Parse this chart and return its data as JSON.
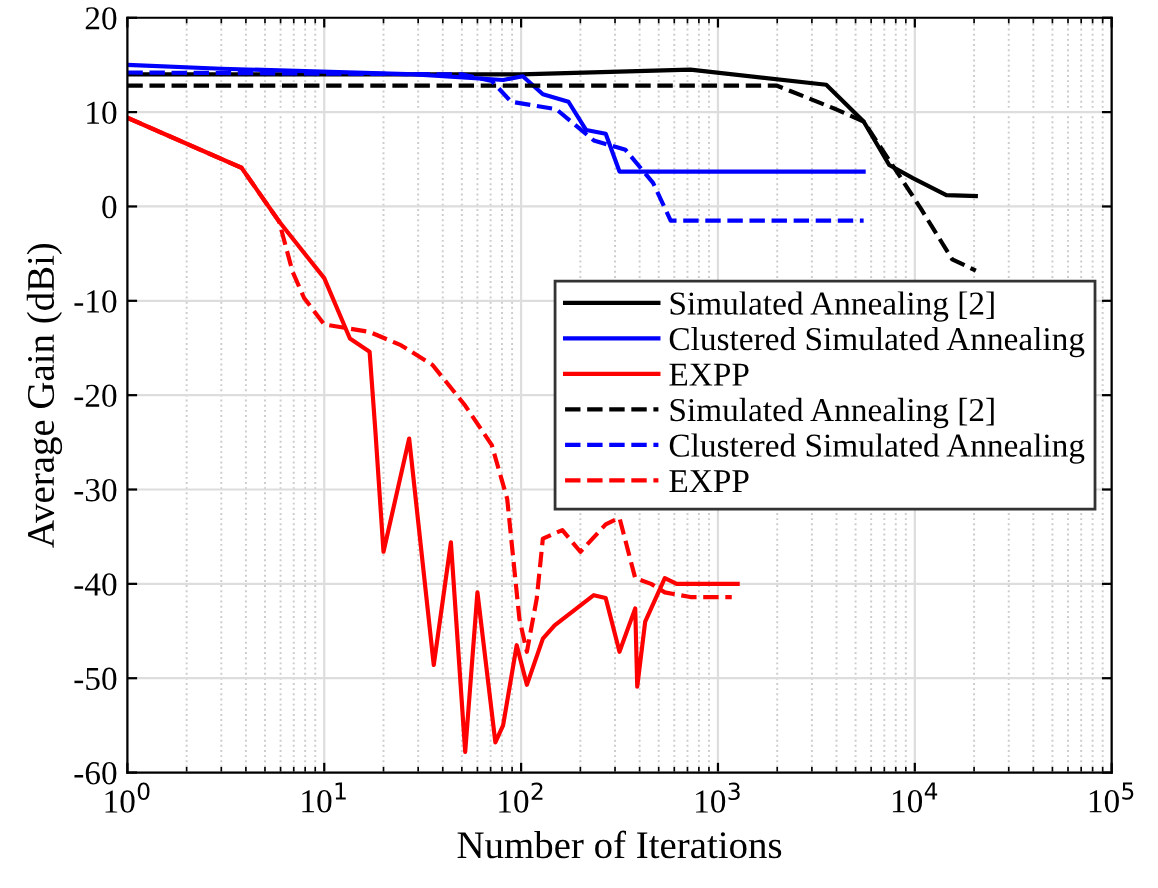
{
  "chart_data": {
    "type": "line",
    "xlabel": "Number of Iterations",
    "ylabel": "Average Gain (dBi)",
    "log": "x",
    "xlim": [
      1,
      100000
    ],
    "xticks": [
      {
        "value": 1,
        "label": "10$^{0}$"
      },
      {
        "value": 10,
        "label": "10$^{1}$"
      },
      {
        "value": 100,
        "label": "10$^{2}$"
      },
      {
        "value": 1000,
        "label": "10$^{3}$"
      },
      {
        "value": 10000,
        "label": "10$^{4}$"
      },
      {
        "value": 100000,
        "label": "10$^{5}$"
      }
    ],
    "ylim": [
      -60,
      20
    ],
    "yticks": [
      -60,
      -50,
      -40,
      -30,
      -20,
      -10,
      0,
      10,
      20
    ],
    "grid": true,
    "legend": "right",
    "series": [
      {
        "name": "Simulated Annealing [2]",
        "color": "#000000",
        "line_style": "solid",
        "x": [
          1,
          100,
          724,
          3548,
          5495,
          7413,
          9772,
          14454,
          20417
        ],
        "values": [
          14,
          14,
          14.5,
          12.9,
          9.0,
          4.4,
          3.0,
          1.2,
          1.1
        ]
      },
      {
        "name": "Clustered Simulated Annealing",
        "color": "#0000ff",
        "line_style": "solid",
        "x": [
          1,
          3,
          29,
          81,
          102,
          129,
          174,
          214,
          269,
          316,
          5495
        ],
        "values": [
          15,
          14.6,
          14,
          13.4,
          13.8,
          11.9,
          11.1,
          8.1,
          7.7,
          3.7,
          3.7
        ]
      },
      {
        "name": "EXPP",
        "color": "#ff0000",
        "line_style": "solid",
        "x": [
          1,
          3.8,
          5.9,
          10,
          13.5,
          17,
          18.2,
          20,
          27,
          36,
          44,
          52,
          60,
          74,
          81,
          95,
          107,
          129,
          148,
          234,
          269,
          316,
          380,
          389,
          427,
          537,
          617,
          1259
        ],
        "values": [
          9.4,
          4.1,
          -1.6,
          -7.6,
          -14,
          -15.4,
          -23.9,
          -36.6,
          -24.6,
          -48.6,
          -35.6,
          -57.8,
          -40.9,
          -56.8,
          -55,
          -46.5,
          -50.7,
          -45.8,
          -44.4,
          -41.2,
          -41.5,
          -47.2,
          -42.6,
          -50.9,
          -44,
          -39.4,
          -40,
          -40
        ]
      },
      {
        "name": "Simulated Annealing [2]",
        "color": "#000000",
        "line_style": "dashed",
        "x": [
          1,
          1995,
          3981,
          5495,
          8511,
          10715,
          15488,
          20417
        ],
        "values": [
          12.8,
          12.8,
          10.3,
          9.0,
          3.0,
          -0.2,
          -5.6,
          -6.8
        ]
      },
      {
        "name": "Clustered Simulated Annealing",
        "color": "#0000ff",
        "line_style": "dashed",
        "x": [
          1,
          50,
          71,
          89,
          151,
          234,
          339,
          468,
          575,
          5495
        ],
        "values": [
          14.2,
          14,
          13.3,
          11.1,
          10.3,
          7.0,
          6.0,
          2.5,
          -1.5,
          -1.5
        ]
      },
      {
        "name": "EXPP",
        "color": "#ff0000",
        "line_style": "dashed",
        "x": [
          1,
          3.8,
          5.9,
          6.9,
          7.9,
          10,
          17,
          24.5,
          35.5,
          52,
          71,
          85,
          98,
          107,
          120,
          129,
          162,
          200,
          269,
          316,
          380,
          457,
          537,
          724,
          1175
        ],
        "values": [
          9.4,
          4.1,
          -1.6,
          -6.9,
          -9.7,
          -12.5,
          -13.3,
          -14.7,
          -16.8,
          -21.1,
          -25.3,
          -31,
          -43.7,
          -47.2,
          -41.6,
          -35.2,
          -34.3,
          -36.6,
          -33.7,
          -33,
          -39.4,
          -40,
          -40.9,
          -41.4,
          -41.4
        ]
      }
    ]
  }
}
